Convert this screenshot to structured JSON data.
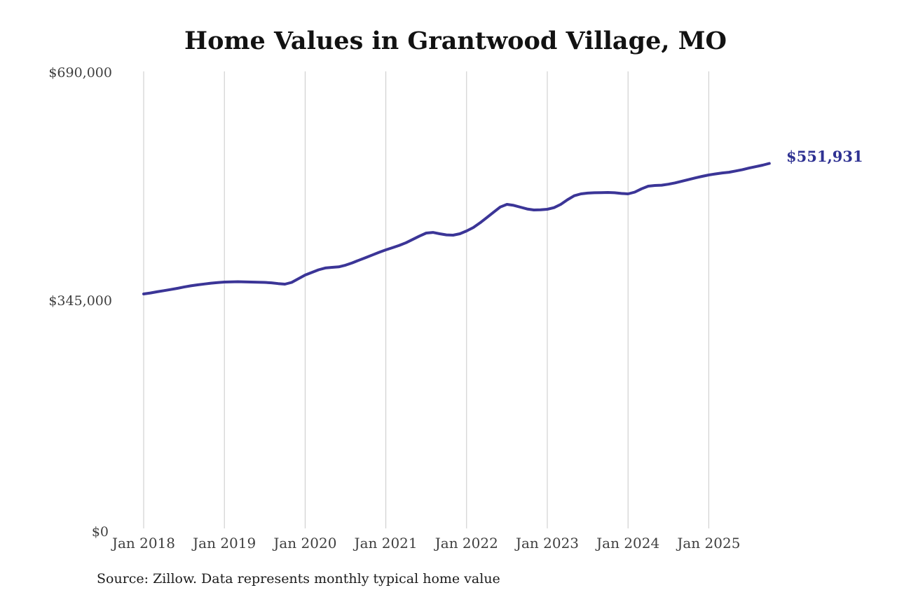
{
  "colors": {
    "background": "#ffffff",
    "line": "#3b3597",
    "value_label": "#2e3192",
    "grid": "#c9c9c9",
    "axis_text": "#3f3f3f",
    "title_text": "#121212",
    "source_text": "#1c1c1c"
  },
  "footer": {
    "source_note": "Source: Zillow. Data represents monthly typical home value"
  },
  "chart_data": {
    "type": "line",
    "title": "Home Values in Grantwood Village, MO",
    "xlabel": "",
    "ylabel": "",
    "x_tick_labels": [
      "Jan 2018",
      "Jan 2019",
      "Jan 2020",
      "Jan 2021",
      "Jan 2022",
      "Jan 2023",
      "Jan 2024",
      "Jan 2025"
    ],
    "y_tick_labels": [
      "$0",
      "$345,000",
      "$690,000"
    ],
    "y_ticks": [
      0,
      345000,
      690000
    ],
    "ylim": [
      0,
      690000
    ],
    "grid": "vertical gridlines only, no horizontal gridlines, no axis lines",
    "legend": "none",
    "final_value": 551931,
    "final_value_label": "$551,931",
    "series": [
      {
        "name": "Monthly typical home value",
        "frequency": "monthly",
        "dates": [
          "2018-01",
          "2018-02",
          "2018-03",
          "2018-04",
          "2018-05",
          "2018-06",
          "2018-07",
          "2018-08",
          "2018-09",
          "2018-10",
          "2018-11",
          "2018-12",
          "2019-01",
          "2019-02",
          "2019-03",
          "2019-04",
          "2019-05",
          "2019-06",
          "2019-07",
          "2019-08",
          "2019-09",
          "2019-10",
          "2019-11",
          "2019-12",
          "2020-01",
          "2020-02",
          "2020-03",
          "2020-04",
          "2020-05",
          "2020-06",
          "2020-07",
          "2020-08",
          "2020-09",
          "2020-10",
          "2020-11",
          "2020-12",
          "2021-01",
          "2021-02",
          "2021-03",
          "2021-04",
          "2021-05",
          "2021-06",
          "2021-07",
          "2021-08",
          "2021-09",
          "2021-10",
          "2021-11",
          "2021-12",
          "2022-01",
          "2022-02",
          "2022-03",
          "2022-04",
          "2022-05",
          "2022-06",
          "2022-07",
          "2022-08",
          "2022-09",
          "2022-10",
          "2022-11",
          "2022-12",
          "2023-01",
          "2023-02",
          "2023-03",
          "2023-04",
          "2023-05",
          "2023-06",
          "2023-07",
          "2023-08",
          "2023-09",
          "2023-10",
          "2023-11",
          "2023-12",
          "2024-01",
          "2024-02",
          "2024-03",
          "2024-04",
          "2024-05",
          "2024-06",
          "2024-07",
          "2024-08",
          "2024-09",
          "2024-10",
          "2024-11",
          "2024-12",
          "2025-01",
          "2025-02",
          "2025-03",
          "2025-04",
          "2025-05",
          "2025-06",
          "2025-07",
          "2025-08",
          "2025-09",
          "2025-10"
        ],
        "values": [
          354500,
          356000,
          357800,
          359500,
          361200,
          363000,
          365000,
          366800,
          368300,
          369600,
          370800,
          371800,
          372500,
          372800,
          373000,
          372800,
          372500,
          372300,
          372000,
          371300,
          370200,
          369300,
          372000,
          377500,
          383100,
          387000,
          391000,
          393800,
          394700,
          395500,
          398000,
          401500,
          405500,
          409500,
          413500,
          417500,
          421200,
          424500,
          428000,
          432000,
          437000,
          442000,
          446600,
          447500,
          445500,
          443800,
          443400,
          445500,
          449800,
          455000,
          462000,
          470000,
          478000,
          486000,
          490000,
          488500,
          485800,
          483000,
          481500,
          481800,
          482600,
          485000,
          490000,
          497000,
          503000,
          505900,
          507000,
          507500,
          507800,
          508000,
          507500,
          506500,
          505900,
          508500,
          513500,
          517500,
          518600,
          519000,
          520500,
          522500,
          525000,
          527500,
          530000,
          532300,
          534400,
          536000,
          537500,
          538600,
          540500,
          542500,
          544900,
          547000,
          549200,
          551931
        ]
      }
    ]
  }
}
